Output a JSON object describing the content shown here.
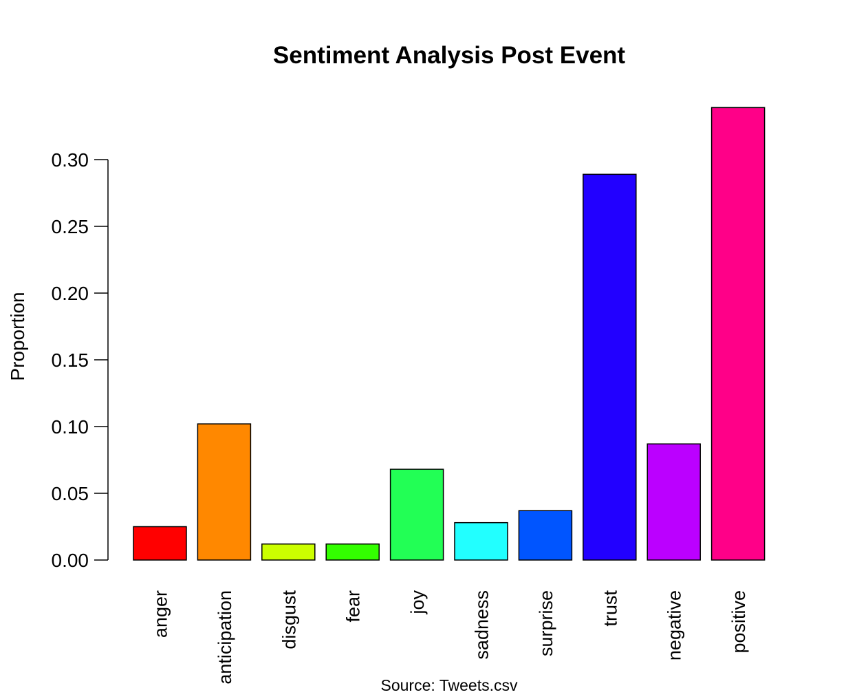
{
  "chart_data": {
    "type": "bar",
    "title": "Sentiment Analysis Post Event",
    "xlabel": "",
    "ylabel": "Proportion",
    "caption": "Source: Tweets.csv",
    "categories": [
      "anger",
      "anticipation",
      "disgust",
      "fear",
      "joy",
      "sadness",
      "surprise",
      "trust",
      "negative",
      "positive"
    ],
    "values": [
      0.025,
      0.102,
      0.012,
      0.012,
      0.068,
      0.028,
      0.037,
      0.289,
      0.087,
      0.339
    ],
    "colors": [
      "#FF0000",
      "#FF8800",
      "#CCFF00",
      "#33FF00",
      "#22FF55",
      "#22FFFF",
      "#0055FF",
      "#2200FF",
      "#BB00FF",
      "#FF0088"
    ],
    "ylim": [
      0,
      0.34
    ],
    "yticks": [
      "0.00",
      "0.05",
      "0.10",
      "0.15",
      "0.20",
      "0.25",
      "0.30"
    ],
    "ytick_values": [
      0,
      0.05,
      0.1,
      0.15,
      0.2,
      0.25,
      0.3
    ],
    "grid": false,
    "legend": "none"
  }
}
